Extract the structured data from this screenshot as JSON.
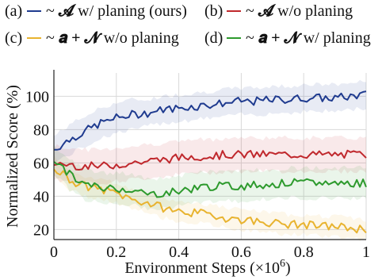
{
  "chart_data": {
    "type": "line",
    "xlabel": "Environment Steps (×10",
    "xlabel_exp": "6",
    "xlabel_close": ")",
    "ylabel": "Normalized Score (%)",
    "xlim": [
      0,
      1
    ],
    "ylim": [
      14,
      114
    ],
    "grid": true,
    "legend_position": "top",
    "x_ticks": [
      {
        "value": 0,
        "label": "0"
      },
      {
        "value": 0.2,
        "label": "0.2"
      },
      {
        "value": 0.4,
        "label": "0.4"
      },
      {
        "value": 0.6,
        "label": "0.6"
      },
      {
        "value": 0.8,
        "label": "0.8"
      },
      {
        "value": 1,
        "label": "1"
      }
    ],
    "y_ticks": [
      {
        "value": 20,
        "label": "20"
      },
      {
        "value": 40,
        "label": "40"
      },
      {
        "value": 60,
        "label": "60"
      },
      {
        "value": 80,
        "label": "80"
      },
      {
        "value": 100,
        "label": "100"
      }
    ],
    "x": [
      0.0,
      0.05,
      0.1,
      0.15,
      0.2,
      0.25,
      0.3,
      0.35,
      0.4,
      0.45,
      0.5,
      0.55,
      0.6,
      0.65,
      0.7,
      0.75,
      0.8,
      0.85,
      0.9,
      0.95,
      1.0
    ],
    "series": [
      {
        "name": "(a) — ~ 𝓐 w/ planing (ours)",
        "color": "#1f3b8f",
        "values": [
          68,
          74,
          79,
          84,
          87,
          89,
          90,
          92,
          93,
          94,
          95,
          96,
          97,
          97,
          98,
          98,
          99,
          99,
          99,
          100,
          101
        ],
        "band": [
          8,
          9,
          9,
          9,
          9,
          9,
          8,
          8,
          8,
          8,
          8,
          8,
          8,
          8,
          8,
          8,
          8,
          8,
          8,
          8,
          8
        ]
      },
      {
        "name": "(b) — ~ 𝓐 w/o planing",
        "color": "#c0282d",
        "values": [
          60,
          59,
          58,
          58,
          59,
          60,
          61,
          62,
          63,
          64,
          64,
          65,
          65,
          65,
          65,
          65,
          65,
          65,
          65,
          65,
          65
        ],
        "band": [
          10,
          10,
          10,
          10,
          10,
          10,
          10,
          10,
          10,
          10,
          10,
          10,
          10,
          10,
          10,
          10,
          10,
          10,
          10,
          10,
          10
        ]
      },
      {
        "name": "(c) — ~ 𝒂 + 𝓝 w/o planing",
        "color": "#e8b32f",
        "values": [
          58,
          50,
          46,
          44,
          42,
          38,
          36,
          33,
          31,
          30,
          29,
          27,
          26,
          25,
          24,
          23,
          23,
          22,
          22,
          21,
          20
        ],
        "band": [
          6,
          6,
          6,
          6,
          6,
          6,
          6,
          6,
          6,
          6,
          6,
          6,
          6,
          6,
          6,
          6,
          6,
          6,
          6,
          6,
          6
        ]
      },
      {
        "name": "(d) — ~ 𝒂 + 𝓝  w/  planing",
        "color": "#2d9a2d",
        "values": [
          62,
          53,
          47,
          45,
          45,
          44,
          41,
          42,
          43,
          45,
          46,
          46,
          46,
          47,
          47,
          48,
          48,
          48,
          48,
          48,
          48
        ],
        "band": [
          8,
          9,
          9,
          9,
          9,
          9,
          9,
          9,
          9,
          9,
          9,
          9,
          9,
          9,
          9,
          9,
          9,
          9,
          9,
          9,
          9
        ]
      }
    ]
  },
  "legend": [
    {
      "id": "a",
      "prefix": "(a)",
      "body": "w/ planing (ours)",
      "glyph": "𝓐",
      "extra": ""
    },
    {
      "id": "b",
      "prefix": "(b)",
      "body": "w/o planing",
      "glyph": "𝓐",
      "extra": ""
    },
    {
      "id": "c",
      "prefix": "(c)",
      "body": "w/o planing",
      "glyph": "𝓝",
      "extra": "𝒂 + "
    },
    {
      "id": "d",
      "prefix": "(d)",
      "body": "w/  planing",
      "glyph": "𝓝",
      "extra": "𝒂 + "
    }
  ]
}
